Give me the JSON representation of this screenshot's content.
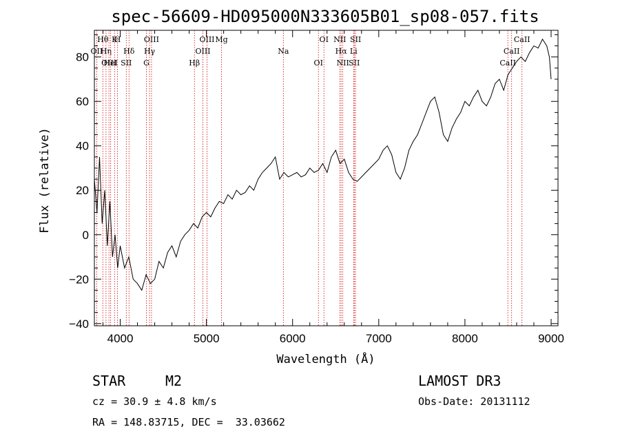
{
  "chart_data": {
    "type": "line",
    "title": "spec-56609-HD095000N333605B01_sp08-057.fits",
    "xlabel": "Wavelength (Å)",
    "ylabel": "Flux (relative)",
    "xlim": [
      3700,
      9080
    ],
    "ylim": [
      -41,
      92
    ],
    "xticks": [
      4000,
      5000,
      6000,
      7000,
      8000,
      9000
    ],
    "yticks": [
      -40,
      -20,
      0,
      20,
      40,
      60,
      80
    ],
    "series": [
      {
        "name": "flux",
        "x": [
          3700,
          3730,
          3760,
          3790,
          3820,
          3850,
          3880,
          3910,
          3940,
          3970,
          4000,
          4050,
          4100,
          4150,
          4200,
          4250,
          4300,
          4350,
          4400,
          4450,
          4500,
          4550,
          4600,
          4650,
          4700,
          4750,
          4800,
          4850,
          4900,
          4950,
          5000,
          5050,
          5100,
          5150,
          5200,
          5250,
          5300,
          5350,
          5400,
          5450,
          5500,
          5550,
          5600,
          5650,
          5700,
          5750,
          5800,
          5850,
          5900,
          5950,
          6000,
          6050,
          6100,
          6150,
          6200,
          6250,
          6300,
          6350,
          6400,
          6450,
          6500,
          6550,
          6600,
          6650,
          6700,
          6750,
          6800,
          6850,
          6900,
          6950,
          7000,
          7050,
          7100,
          7150,
          7200,
          7250,
          7300,
          7350,
          7400,
          7450,
          7500,
          7550,
          7600,
          7650,
          7700,
          7750,
          7800,
          7850,
          7900,
          7950,
          8000,
          8050,
          8100,
          8150,
          8200,
          8250,
          8300,
          8350,
          8400,
          8450,
          8500,
          8550,
          8600,
          8650,
          8700,
          8750,
          8800,
          8850,
          8900,
          8950,
          8980,
          9000
        ],
        "y": [
          25,
          10,
          35,
          5,
          20,
          -5,
          15,
          -10,
          0,
          -15,
          -5,
          -15,
          -10,
          -20,
          -22,
          -25,
          -18,
          -22,
          -20,
          -12,
          -15,
          -8,
          -5,
          -10,
          -3,
          0,
          2,
          5,
          3,
          8,
          10,
          8,
          12,
          15,
          14,
          18,
          16,
          20,
          18,
          19,
          22,
          20,
          25,
          28,
          30,
          32,
          35,
          25,
          28,
          26,
          27,
          28,
          26,
          27,
          30,
          28,
          29,
          32,
          28,
          35,
          38,
          32,
          34,
          28,
          25,
          24,
          26,
          28,
          30,
          32,
          34,
          38,
          40,
          36,
          28,
          25,
          30,
          38,
          42,
          45,
          50,
          55,
          60,
          62,
          55,
          45,
          42,
          48,
          52,
          55,
          60,
          58,
          62,
          65,
          60,
          58,
          62,
          68,
          70,
          65,
          72,
          75,
          78,
          80,
          78,
          82,
          85,
          84,
          88,
          85,
          80,
          70
        ]
      }
    ],
    "emission_lines": [
      {
        "name": "Hθ",
        "wavelength": 3798
      },
      {
        "name": "OII",
        "wavelength": 3727
      },
      {
        "name": "OIII",
        "wavelength": 3869
      },
      {
        "name": "K",
        "wavelength": 3934
      },
      {
        "name": "Hη",
        "wavelength": 3835
      },
      {
        "name": "HeI",
        "wavelength": 3889
      },
      {
        "name": "H",
        "wavelength": 3968
      },
      {
        "name": "Hδ",
        "wavelength": 4102
      },
      {
        "name": "SII",
        "wavelength": 4070
      },
      {
        "name": "OIII",
        "wavelength": 4363
      },
      {
        "name": "Hγ",
        "wavelength": 4340
      },
      {
        "name": "G",
        "wavelength": 4304
      },
      {
        "name": "OIII",
        "wavelength": 5007
      },
      {
        "name": "OIII",
        "wavelength": 4959
      },
      {
        "name": "Hβ",
        "wavelength": 4861
      },
      {
        "name": "Mg",
        "wavelength": 5175
      },
      {
        "name": "Na",
        "wavelength": 5893
      },
      {
        "name": "OI",
        "wavelength": 6300
      },
      {
        "name": "OI",
        "wavelength": 6364
      },
      {
        "name": "Hα",
        "wavelength": 6563
      },
      {
        "name": "SII",
        "wavelength": 6716
      },
      {
        "name": "NII",
        "wavelength": 6548
      },
      {
        "name": "Li",
        "wavelength": 6708
      },
      {
        "name": "NII",
        "wavelength": 6583
      },
      {
        "name": "SII",
        "wavelength": 6731
      },
      {
        "name": "CaII",
        "wavelength": 8542
      },
      {
        "name": "CaII",
        "wavelength": 8498
      },
      {
        "name": "CaII",
        "wavelength": 8662
      }
    ]
  },
  "info": {
    "object_class": "STAR",
    "subclass": "M2",
    "survey": "LAMOST DR3",
    "cz": "cz = 30.9 ± 4.8 km/s",
    "obs_date": "Obs-Date: 20131112",
    "coords": "RA = 148.83715, DEC =  33.03662"
  }
}
